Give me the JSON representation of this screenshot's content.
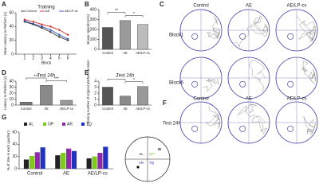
{
  "chart_data": [
    {
      "panel": "A",
      "type": "line",
      "title": "Training",
      "x_label": "Block",
      "y_label": "Mean Latency to Platform (s)",
      "x": [
        1,
        2,
        3,
        4,
        5,
        6
      ],
      "xlim": [
        0,
        7
      ],
      "xticks": [
        1,
        2,
        3,
        4,
        5,
        6
      ],
      "ylim": [
        0,
        60
      ],
      "yticks": [
        0,
        20,
        40,
        60
      ],
      "series": [
        {
          "name": "Control",
          "color": "#333333",
          "values": [
            47,
            43,
            38,
            32,
            25,
            20
          ]
        },
        {
          "name": "AE",
          "color": "#d62728",
          "values": [
            50,
            47,
            43,
            40,
            35,
            28
          ]
        },
        {
          "name": "AE/LP-cs",
          "color": "#2b4fb5",
          "values": [
            48,
            44,
            40,
            35,
            28,
            22
          ]
        }
      ]
    },
    {
      "panel": "B",
      "type": "bar",
      "y_label": "Mouse speed(mm/s)",
      "categories": [
        "Control",
        "AE",
        "AE/LP-cs"
      ],
      "values": [
        220,
        290,
        250
      ],
      "colors": [
        "#555555",
        "#9a9a9a",
        "#bcbcbc"
      ],
      "ylim": [
        0,
        400
      ],
      "yticks": [
        0,
        100,
        200,
        300,
        400
      ],
      "annotations": [
        "**",
        "*"
      ]
    },
    {
      "panel": "D",
      "type": "bar",
      "title": "Test 24h",
      "y_label": "Latency to Platform (s)",
      "categories": [
        "Control",
        "AE",
        "AE/LP-cs"
      ],
      "values": [
        5,
        33,
        8
      ],
      "colors": [
        "#777777",
        "#8a8a8a",
        "#999999"
      ],
      "ylim": [
        0,
        40
      ],
      "yticks": [
        0,
        10,
        20,
        30,
        40
      ],
      "annotations": [
        "***",
        "***"
      ]
    },
    {
      "panel": "E",
      "type": "bar",
      "title": "Test 24h",
      "y_label": "Crossing number of original platform location",
      "categories": [
        "Control",
        "AE",
        "AE/LP-cs"
      ],
      "values": [
        3,
        1.5,
        3.1
      ],
      "colors": [
        "#555555",
        "#8a8a8a",
        "#999999"
      ],
      "ylim": [
        0,
        4
      ],
      "yticks": [
        0,
        1,
        2,
        3,
        4
      ],
      "annotations": [
        "*",
        "*"
      ]
    },
    {
      "panel": "G",
      "type": "grouped_bar",
      "y_label": "% of time in each quadrant",
      "categories": [
        "Control",
        "AE",
        "AE/LP-cs"
      ],
      "ylim": [
        0,
        60
      ],
      "yticks": [
        0,
        20,
        40,
        60
      ],
      "series": [
        {
          "name": "AL",
          "color": "#222222",
          "values": [
            15,
            22,
            17
          ]
        },
        {
          "name": "OP",
          "color": "#7ec820",
          "values": [
            21,
            26,
            20
          ]
        },
        {
          "name": "AR",
          "color": "#8e2aa8",
          "values": [
            27,
            33,
            26
          ]
        },
        {
          "name": "TQ",
          "color": "#2233bb",
          "values": [
            35,
            29,
            36
          ]
        }
      ]
    }
  ],
  "trajectories_block": {
    "panel": "C",
    "columns": [
      "Control",
      "AE",
      "AE/LP-cs"
    ],
    "rows": [
      "Block1",
      "Block6"
    ]
  },
  "trajectories_test": {
    "panel": "F",
    "columns": [
      "Control",
      "AE",
      "AE/LP-cs"
    ],
    "row": "Test 24h"
  },
  "quadrant_map": {
    "labels": [
      "AL",
      "OP",
      "AR",
      "TQ"
    ]
  }
}
